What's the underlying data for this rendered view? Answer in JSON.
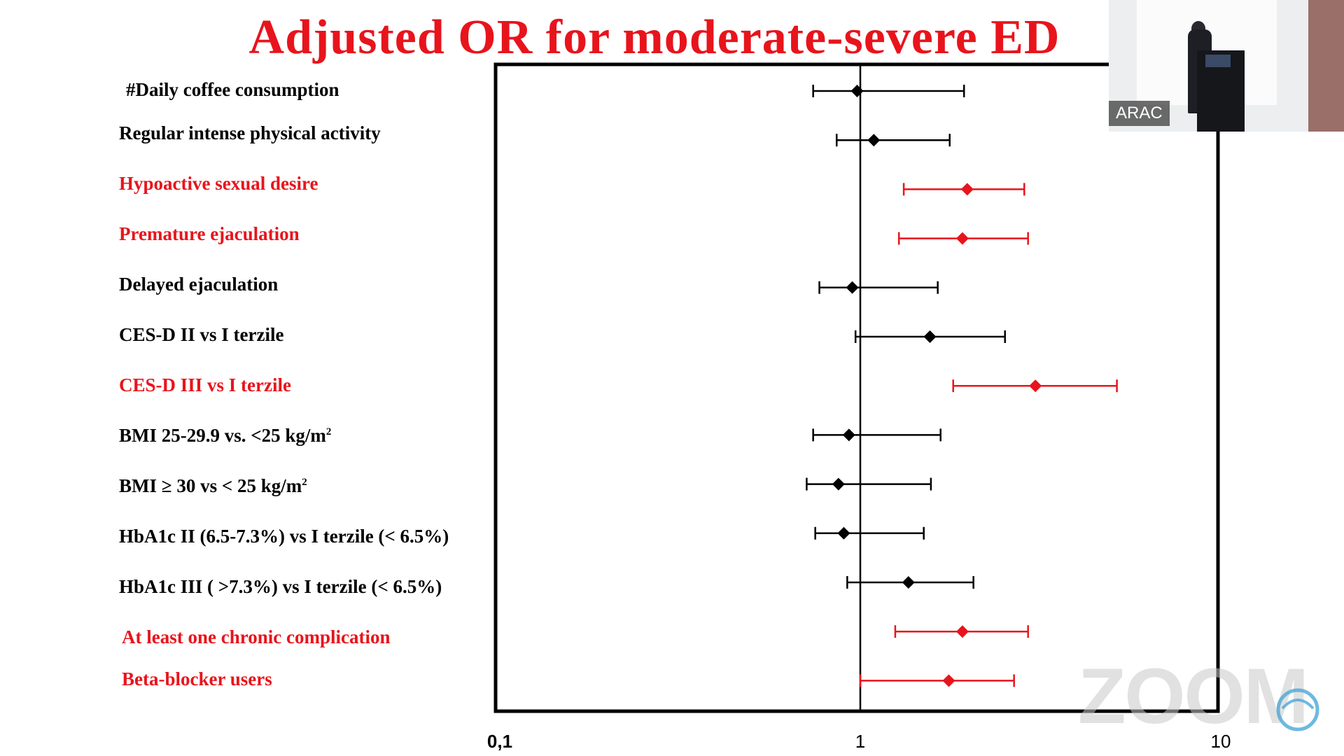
{
  "chart_data": {
    "type": "forest",
    "title": "Adjusted OR for moderate-severe ED",
    "x_scale": "log",
    "xlim": [
      0.1,
      10
    ],
    "x_ticks": [
      {
        "value": 0.1,
        "label": "0,1"
      },
      {
        "value": 1,
        "label": "1"
      },
      {
        "value": 10,
        "label": "10"
      }
    ],
    "reference_line": 1,
    "colors": {
      "significant": "#e8141c",
      "not_significant": "#000000"
    },
    "rows": [
      {
        "label": "#Daily coffee consumption",
        "or": 0.98,
        "lower": 0.74,
        "upper": 1.94,
        "significant": false
      },
      {
        "label": "Regular intense physical activity",
        "or": 1.09,
        "lower": 0.86,
        "upper": 1.77,
        "significant": false
      },
      {
        "label": "Hypoactive sexual desire",
        "or": 1.98,
        "lower": 1.32,
        "upper": 2.85,
        "significant": true
      },
      {
        "label": "Premature ejaculation",
        "or": 1.92,
        "lower": 1.28,
        "upper": 2.92,
        "significant": true
      },
      {
        "label": "Delayed ejaculation",
        "or": 0.95,
        "lower": 0.77,
        "upper": 1.64,
        "significant": false
      },
      {
        "label": "CES-D II vs I terzile",
        "or": 1.56,
        "lower": 0.97,
        "upper": 2.52,
        "significant": false
      },
      {
        "label": "CES-D III vs I terzile",
        "or": 3.06,
        "lower": 1.81,
        "upper": 5.15,
        "significant": true
      },
      {
        "label": "BMI 25-29.9  vs. <25 kg/m",
        "label_sup": "2",
        "or": 0.93,
        "lower": 0.74,
        "upper": 1.67,
        "significant": false
      },
      {
        "label": "BMI ≥ 30 vs < 25 kg/m",
        "label_sup": "2",
        "or": 0.87,
        "lower": 0.71,
        "upper": 1.57,
        "significant": false
      },
      {
        "label": "HbA1c  II (6.5-7.3%) vs I terzile (< 6.5%)",
        "or": 0.9,
        "lower": 0.75,
        "upper": 1.5,
        "significant": false
      },
      {
        "label": "HbA1c III ( >7.3%) vs I terzile (< 6.5%)",
        "or": 1.36,
        "lower": 0.92,
        "upper": 2.06,
        "significant": false
      },
      {
        "label": "At least one chronic complication",
        "or": 1.92,
        "lower": 1.25,
        "upper": 2.92,
        "significant": true
      },
      {
        "label": "Beta-blocker users",
        "or": 1.76,
        "lower": 1.0,
        "upper": 2.67,
        "significant": true
      }
    ]
  },
  "video": {
    "participant_label": "ARAC"
  },
  "watermark": {
    "text": "ZOOM"
  }
}
